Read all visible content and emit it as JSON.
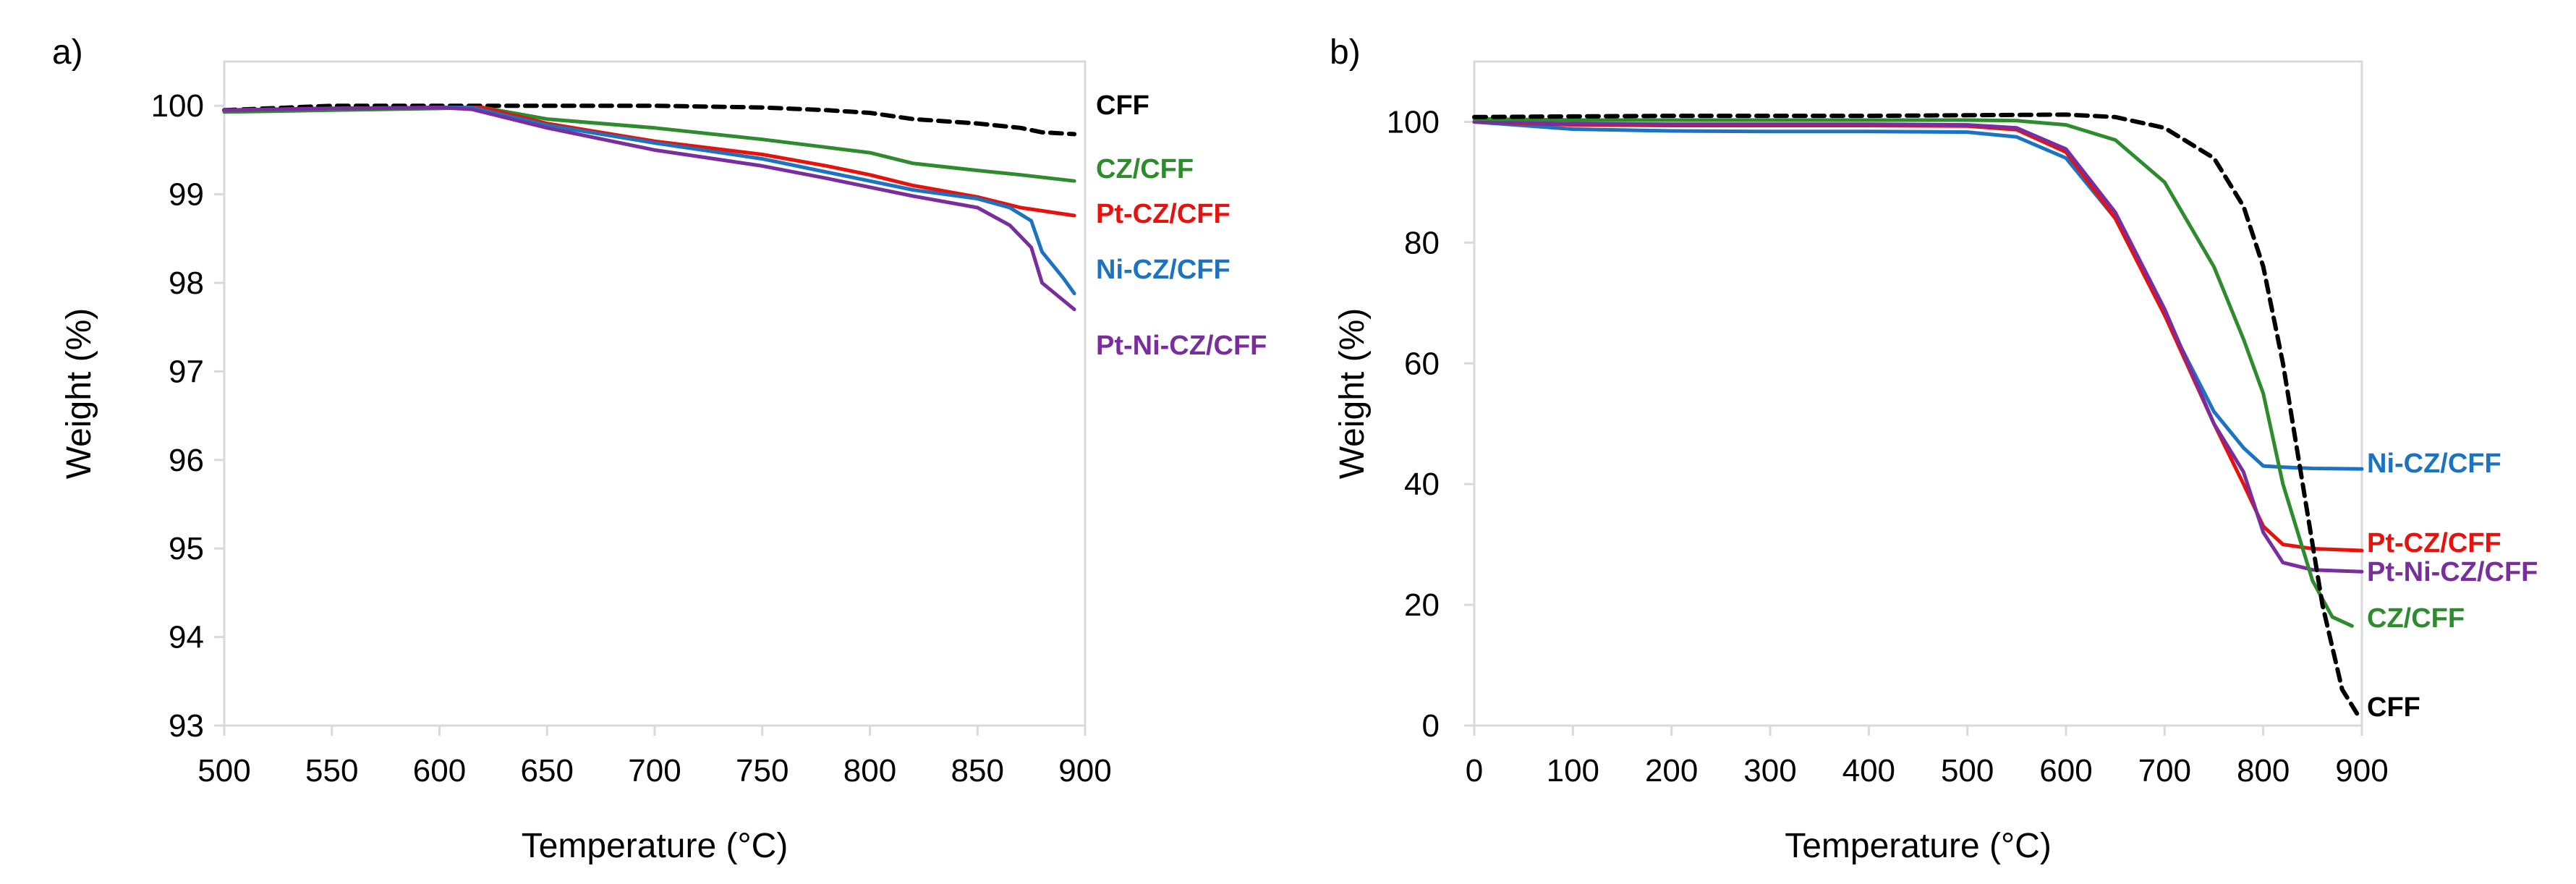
{
  "chart_data": [
    {
      "id": "a",
      "type": "line",
      "panel_label": "a)",
      "xlabel": "Temperature (°C)",
      "ylabel": "Weight (%)",
      "xlim": [
        500,
        900
      ],
      "ylim": [
        93,
        100.5
      ],
      "xticks": [
        500,
        550,
        600,
        650,
        700,
        750,
        800,
        850,
        900
      ],
      "yticks": [
        93,
        94,
        95,
        96,
        97,
        98,
        99,
        100
      ],
      "grid": false,
      "legend": "inline-right",
      "series": [
        {
          "name": "CFF",
          "color": "#000000",
          "dash": "dashed",
          "x": [
            500,
            550,
            600,
            620,
            650,
            700,
            750,
            780,
            800,
            820,
            850,
            870,
            880,
            895
          ],
          "y": [
            99.95,
            100.0,
            100.0,
            100.0,
            100.0,
            100.0,
            99.98,
            99.95,
            99.92,
            99.85,
            99.8,
            99.75,
            99.7,
            99.68
          ]
        },
        {
          "name": "CZ/CFF",
          "color": "#2e8b2e",
          "dash": "solid",
          "x": [
            500,
            550,
            600,
            620,
            650,
            700,
            750,
            780,
            800,
            820,
            850,
            870,
            895
          ],
          "y": [
            99.93,
            99.95,
            99.97,
            99.98,
            99.85,
            99.75,
            99.62,
            99.53,
            99.47,
            99.35,
            99.27,
            99.22,
            99.15
          ]
        },
        {
          "name": "Pt-CZ/CFF",
          "color": "#e8120c",
          "dash": "solid",
          "x": [
            500,
            550,
            600,
            620,
            650,
            700,
            750,
            780,
            800,
            820,
            850,
            870,
            895
          ],
          "y": [
            99.95,
            99.97,
            99.98,
            99.98,
            99.8,
            99.6,
            99.45,
            99.32,
            99.22,
            99.1,
            98.97,
            98.85,
            98.76
          ]
        },
        {
          "name": "Ni-CZ/CFF",
          "color": "#1c73c2",
          "dash": "solid",
          "x": [
            500,
            550,
            600,
            615,
            650,
            700,
            750,
            780,
            800,
            820,
            850,
            865,
            875,
            880,
            890,
            895
          ],
          "y": [
            99.95,
            99.97,
            99.98,
            99.98,
            99.78,
            99.58,
            99.4,
            99.25,
            99.15,
            99.05,
            98.95,
            98.85,
            98.7,
            98.35,
            98.05,
            97.88
          ]
        },
        {
          "name": "Pt-Ni-CZ/CFF",
          "color": "#7a2e9e",
          "dash": "solid",
          "x": [
            500,
            550,
            600,
            615,
            650,
            700,
            750,
            780,
            800,
            820,
            850,
            865,
            875,
            880,
            890,
            895
          ],
          "y": [
            99.95,
            99.97,
            99.98,
            99.96,
            99.75,
            99.5,
            99.32,
            99.18,
            99.08,
            98.98,
            98.85,
            98.65,
            98.4,
            98.0,
            97.8,
            97.7
          ]
        }
      ]
    },
    {
      "id": "b",
      "type": "line",
      "panel_label": "b)",
      "xlabel": "Temperature (°C)",
      "ylabel": "Weight (%)",
      "xlim": [
        0,
        900
      ],
      "ylim": [
        0,
        110
      ],
      "xticks": [
        0,
        100,
        200,
        300,
        400,
        500,
        600,
        700,
        800,
        900
      ],
      "yticks": [
        0,
        20,
        40,
        60,
        80,
        100
      ],
      "grid": false,
      "legend": "inline-right",
      "series": [
        {
          "name": "Ni-CZ/CFF",
          "color": "#1c73c2",
          "dash": "solid",
          "x": [
            0,
            100,
            200,
            300,
            400,
            500,
            550,
            600,
            650,
            700,
            750,
            780,
            800,
            820,
            850,
            900
          ],
          "y": [
            100,
            98.8,
            98.5,
            98.4,
            98.4,
            98.3,
            97.5,
            94,
            84,
            68,
            52,
            46,
            43,
            42.8,
            42.6,
            42.5
          ]
        },
        {
          "name": "Pt-CZ/CFF",
          "color": "#e8120c",
          "dash": "solid",
          "x": [
            0,
            100,
            200,
            300,
            400,
            500,
            550,
            600,
            650,
            700,
            750,
            780,
            800,
            820,
            850,
            900
          ],
          "y": [
            100,
            99.5,
            99.4,
            99.4,
            99.4,
            99.3,
            98.7,
            95,
            84,
            68,
            50,
            40,
            33,
            30,
            29.3,
            29
          ]
        },
        {
          "name": "Pt-Ni-CZ/CFF",
          "color": "#7a2e9e",
          "dash": "solid",
          "x": [
            0,
            100,
            200,
            300,
            400,
            500,
            550,
            600,
            650,
            700,
            750,
            780,
            800,
            820,
            850,
            900
          ],
          "y": [
            100,
            99.7,
            99.6,
            99.6,
            99.6,
            99.5,
            99,
            95.5,
            85,
            69,
            50,
            42,
            32,
            27,
            25.8,
            25.5
          ]
        },
        {
          "name": "CZ/CFF",
          "color": "#2e8b2e",
          "dash": "solid",
          "x": [
            0,
            100,
            200,
            300,
            400,
            500,
            550,
            600,
            650,
            700,
            750,
            780,
            800,
            820,
            850,
            870,
            890
          ],
          "y": [
            100.5,
            100.3,
            100.3,
            100.3,
            100.3,
            100.3,
            100.2,
            99.5,
            97,
            90,
            76,
            64,
            55,
            40,
            24,
            18,
            16.5
          ]
        },
        {
          "name": "CFF",
          "color": "#000000",
          "dash": "dashed",
          "x": [
            0,
            100,
            200,
            300,
            400,
            500,
            600,
            650,
            700,
            750,
            780,
            800,
            820,
            840,
            860,
            880,
            895
          ],
          "y": [
            100.8,
            100.9,
            101,
            101,
            101,
            101.1,
            101.2,
            100.8,
            99,
            94,
            86,
            76,
            60,
            40,
            20,
            6,
            2
          ]
        }
      ]
    }
  ]
}
